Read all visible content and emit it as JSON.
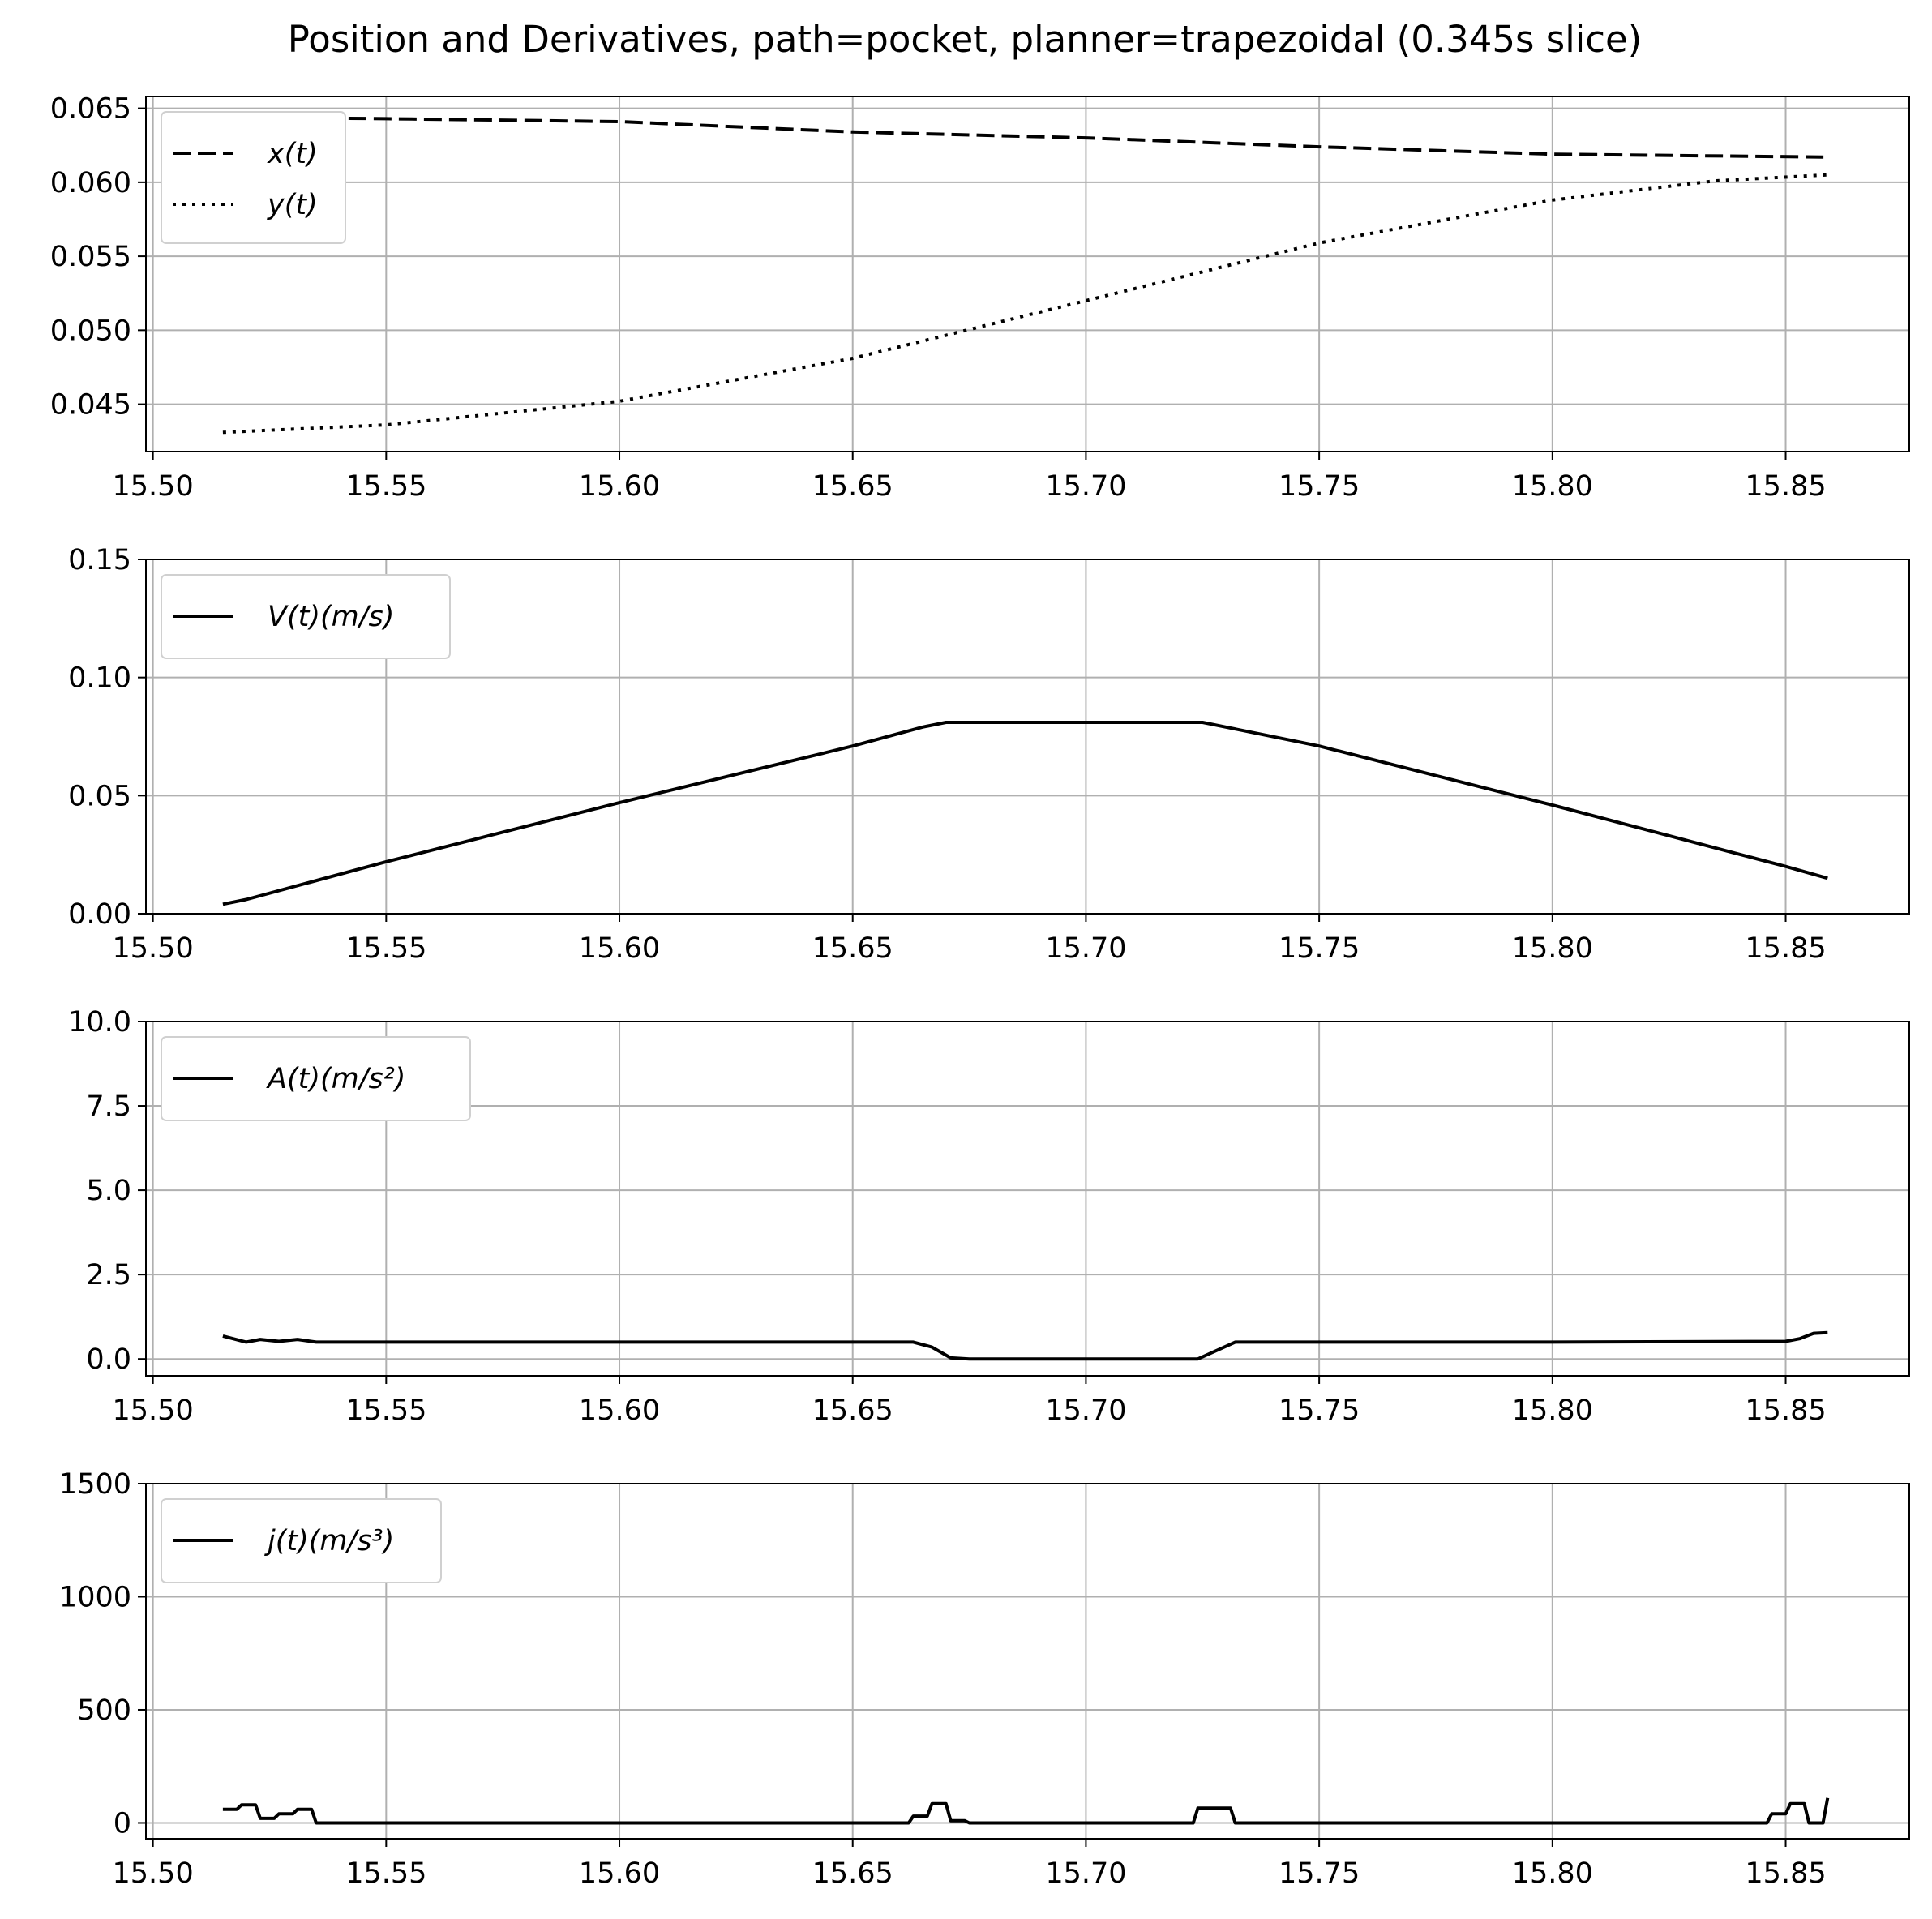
{
  "chart_data": {
    "title": "Position and Derivatives, path=pocket, planner=trapezoidal (0.345s slice)",
    "x_ticks": [
      "15.50",
      "15.55",
      "15.60",
      "15.65",
      "15.70",
      "15.75",
      "15.80",
      "15.85"
    ],
    "subplots": [
      {
        "type": "line",
        "ylim": [
          0.0418,
          0.0658
        ],
        "xlim": [
          15.4985,
          15.8765
        ],
        "y_ticks": [
          "0.045",
          "0.050",
          "0.055",
          "0.060",
          "0.065"
        ],
        "grid": true,
        "legend": "top-left",
        "series": [
          {
            "name": "x(t)",
            "style": "dashed",
            "x": [
              15.515,
              15.55,
              15.6,
              15.65,
              15.7,
              15.75,
              15.8,
              15.859
            ],
            "y": [
              0.0644,
              0.0643,
              0.0641,
              0.0634,
              0.063,
              0.0624,
              0.0619,
              0.0617
            ]
          },
          {
            "name": "y(t)",
            "style": "dotted",
            "x": [
              15.515,
              15.55,
              15.6,
              15.65,
              15.7,
              15.75,
              15.8,
              15.835,
              15.859
            ],
            "y": [
              0.0431,
              0.0436,
              0.0452,
              0.0481,
              0.052,
              0.0559,
              0.0588,
              0.0601,
              0.0605
            ]
          }
        ]
      },
      {
        "type": "line",
        "ylim": [
          0.0,
          0.15
        ],
        "xlim": [
          15.4985,
          15.8765
        ],
        "y_ticks": [
          "0.00",
          "0.05",
          "0.10",
          "0.15"
        ],
        "grid": true,
        "legend": "top-left",
        "series": [
          {
            "name": "V(t)(m/s)",
            "style": "solid",
            "x": [
              15.515,
              15.52,
              15.55,
              15.6,
              15.65,
              15.665,
              15.67,
              15.725,
              15.73,
              15.75,
              15.8,
              15.85,
              15.859
            ],
            "y": [
              0.004,
              0.006,
              0.022,
              0.047,
              0.071,
              0.079,
              0.081,
              0.081,
              0.079,
              0.071,
              0.046,
              0.02,
              0.015
            ]
          }
        ]
      },
      {
        "type": "line",
        "ylim": [
          -0.5,
          10.0
        ],
        "xlim": [
          15.4985,
          15.8765
        ],
        "y_ticks": [
          "0.0",
          "2.5",
          "5.0",
          "7.5",
          "10.0"
        ],
        "grid": true,
        "legend": "top-left",
        "series": [
          {
            "name": "A(t)(m/s²)",
            "style": "solid",
            "x": [
              15.515,
              15.52,
              15.523,
              15.527,
              15.531,
              15.535,
              15.55,
              15.6,
              15.65,
              15.663,
              15.667,
              15.671,
              15.675,
              15.7,
              15.724,
              15.732,
              15.75,
              15.8,
              15.85,
              15.853,
              15.856,
              15.859
            ],
            "y": [
              0.68,
              0.5,
              0.58,
              0.52,
              0.58,
              0.5,
              0.5,
              0.5,
              0.5,
              0.5,
              0.35,
              0.03,
              0.0,
              0.0,
              0.0,
              0.5,
              0.5,
              0.5,
              0.52,
              0.6,
              0.76,
              0.78
            ]
          }
        ]
      },
      {
        "type": "line",
        "ylim": [
          -70,
          1500
        ],
        "xlim": [
          15.4985,
          15.8765
        ],
        "y_ticks": [
          "0",
          "500",
          "1000",
          "1500"
        ],
        "grid": true,
        "legend": "top-left",
        "series": [
          {
            "name": "j(t)(m/s³)",
            "style": "solid",
            "x": [
              15.515,
              15.518,
              15.519,
              15.522,
              15.523,
              15.526,
              15.527,
              15.53,
              15.531,
              15.534,
              15.535,
              15.6,
              15.662,
              15.663,
              15.666,
              15.667,
              15.67,
              15.671,
              15.674,
              15.675,
              15.723,
              15.724,
              15.731,
              15.732,
              15.8,
              15.846,
              15.847,
              15.85,
              15.851,
              15.854,
              15.855,
              15.858,
              15.859
            ],
            "y": [
              60,
              60,
              80,
              80,
              20,
              20,
              40,
              40,
              60,
              60,
              0,
              0,
              0,
              30,
              30,
              85,
              85,
              10,
              10,
              0,
              0,
              65,
              65,
              0,
              0,
              0,
              40,
              40,
              85,
              85,
              0,
              0,
              110
            ]
          }
        ]
      }
    ]
  }
}
